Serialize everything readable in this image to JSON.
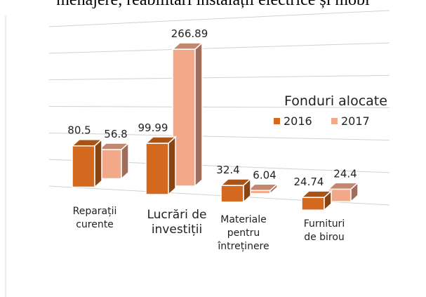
{
  "doc_text": "menajere, reabilitări instalații electrice și mobi",
  "chart_data": {
    "type": "bar3d",
    "legend_title": "Fonduri alocate",
    "categories": [
      [
        "Reparații",
        "curente"
      ],
      [
        "Lucrări de",
        "investiții"
      ],
      [
        "Materiale",
        "pentru",
        "întreținere"
      ],
      [
        "Furnituri",
        "de birou"
      ]
    ],
    "series": [
      {
        "name": "2016",
        "color": "#d2691e",
        "values": [
          80.5,
          99.99,
          32.4,
          24.74
        ]
      },
      {
        "name": "2017",
        "color": "#f4a88a",
        "values": [
          56.8,
          266.89,
          6.04,
          24.4
        ]
      }
    ],
    "ylim": [
      0,
      300
    ],
    "yticks": [
      0,
      50,
      100,
      150,
      200,
      250,
      300
    ],
    "grid": true,
    "legend": "upper right"
  }
}
